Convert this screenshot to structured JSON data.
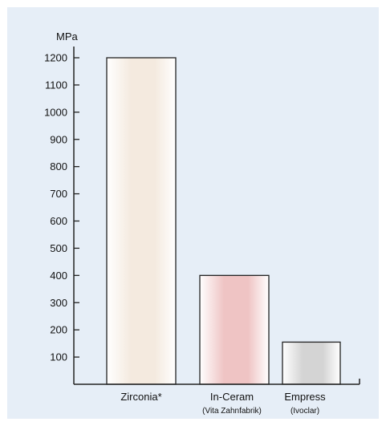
{
  "chart_data": {
    "type": "bar",
    "ylabel": "MPa",
    "ylim": [
      0,
      1250
    ],
    "yticks": [
      100,
      200,
      300,
      400,
      500,
      600,
      700,
      800,
      900,
      1000,
      1100,
      1200
    ],
    "categories": [
      "Zirconia*",
      "In-Ceram",
      "Empress"
    ],
    "category_sublabels": [
      "",
      "(Vita Zahnfabrik)",
      "(Ivoclar)"
    ],
    "values": [
      1200,
      400,
      155
    ],
    "bar_colors": [
      "#f4eadf",
      "#efc4c4",
      "#d4d4d4"
    ],
    "grid": false,
    "legend": "none"
  },
  "colors": {
    "panel_background": "#e6eef7",
    "axis": "#222222",
    "bar_border": "#222222"
  }
}
